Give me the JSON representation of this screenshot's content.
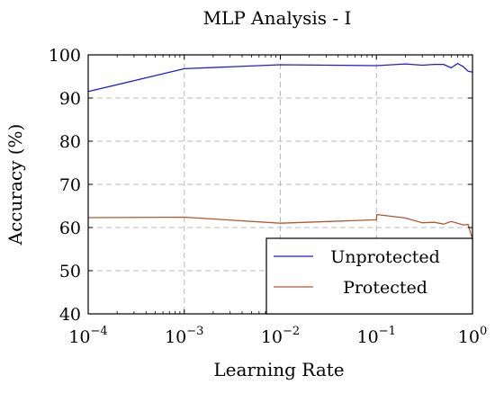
{
  "chart_data": {
    "type": "line",
    "title": "MLP Analysis - I",
    "xlabel": "Learning Rate",
    "ylabel": "Accuracy (%)",
    "xscale": "log",
    "xlim": [
      0.0001,
      1
    ],
    "ylim": [
      40,
      100
    ],
    "grid": true,
    "legend_position": "bottom-right",
    "x_ticks": [
      {
        "value": 0.0001,
        "base": "10",
        "exp": "−4"
      },
      {
        "value": 0.001,
        "base": "10",
        "exp": "−3"
      },
      {
        "value": 0.01,
        "base": "10",
        "exp": "−2"
      },
      {
        "value": 0.1,
        "base": "10",
        "exp": "−1"
      },
      {
        "value": 1,
        "base": "10",
        "exp": "0"
      }
    ],
    "y_ticks": [
      40,
      50,
      60,
      70,
      80,
      90,
      100
    ],
    "series": [
      {
        "name": "Unprotected",
        "color": "#1f1fd6",
        "x": [
          0.0001,
          0.001,
          0.01,
          0.1,
          0.2,
          0.3,
          0.4,
          0.5,
          0.6,
          0.7,
          0.8,
          0.9,
          1.0
        ],
        "y": [
          91.5,
          96.8,
          97.7,
          97.5,
          97.9,
          97.6,
          97.8,
          97.8,
          97.0,
          98.0,
          97.3,
          96.2,
          96.0
        ]
      },
      {
        "name": "Protected",
        "color": "#b05a30",
        "x": [
          0.0001,
          0.001,
          0.01,
          0.1,
          0.101,
          0.2,
          0.3,
          0.4,
          0.5,
          0.6,
          0.7,
          0.8,
          0.9,
          1.0
        ],
        "y": [
          62.3,
          62.4,
          61.0,
          61.8,
          63.0,
          62.2,
          61.1,
          61.2,
          60.8,
          61.4,
          61.0,
          60.6,
          60.7,
          57.3
        ]
      }
    ]
  }
}
